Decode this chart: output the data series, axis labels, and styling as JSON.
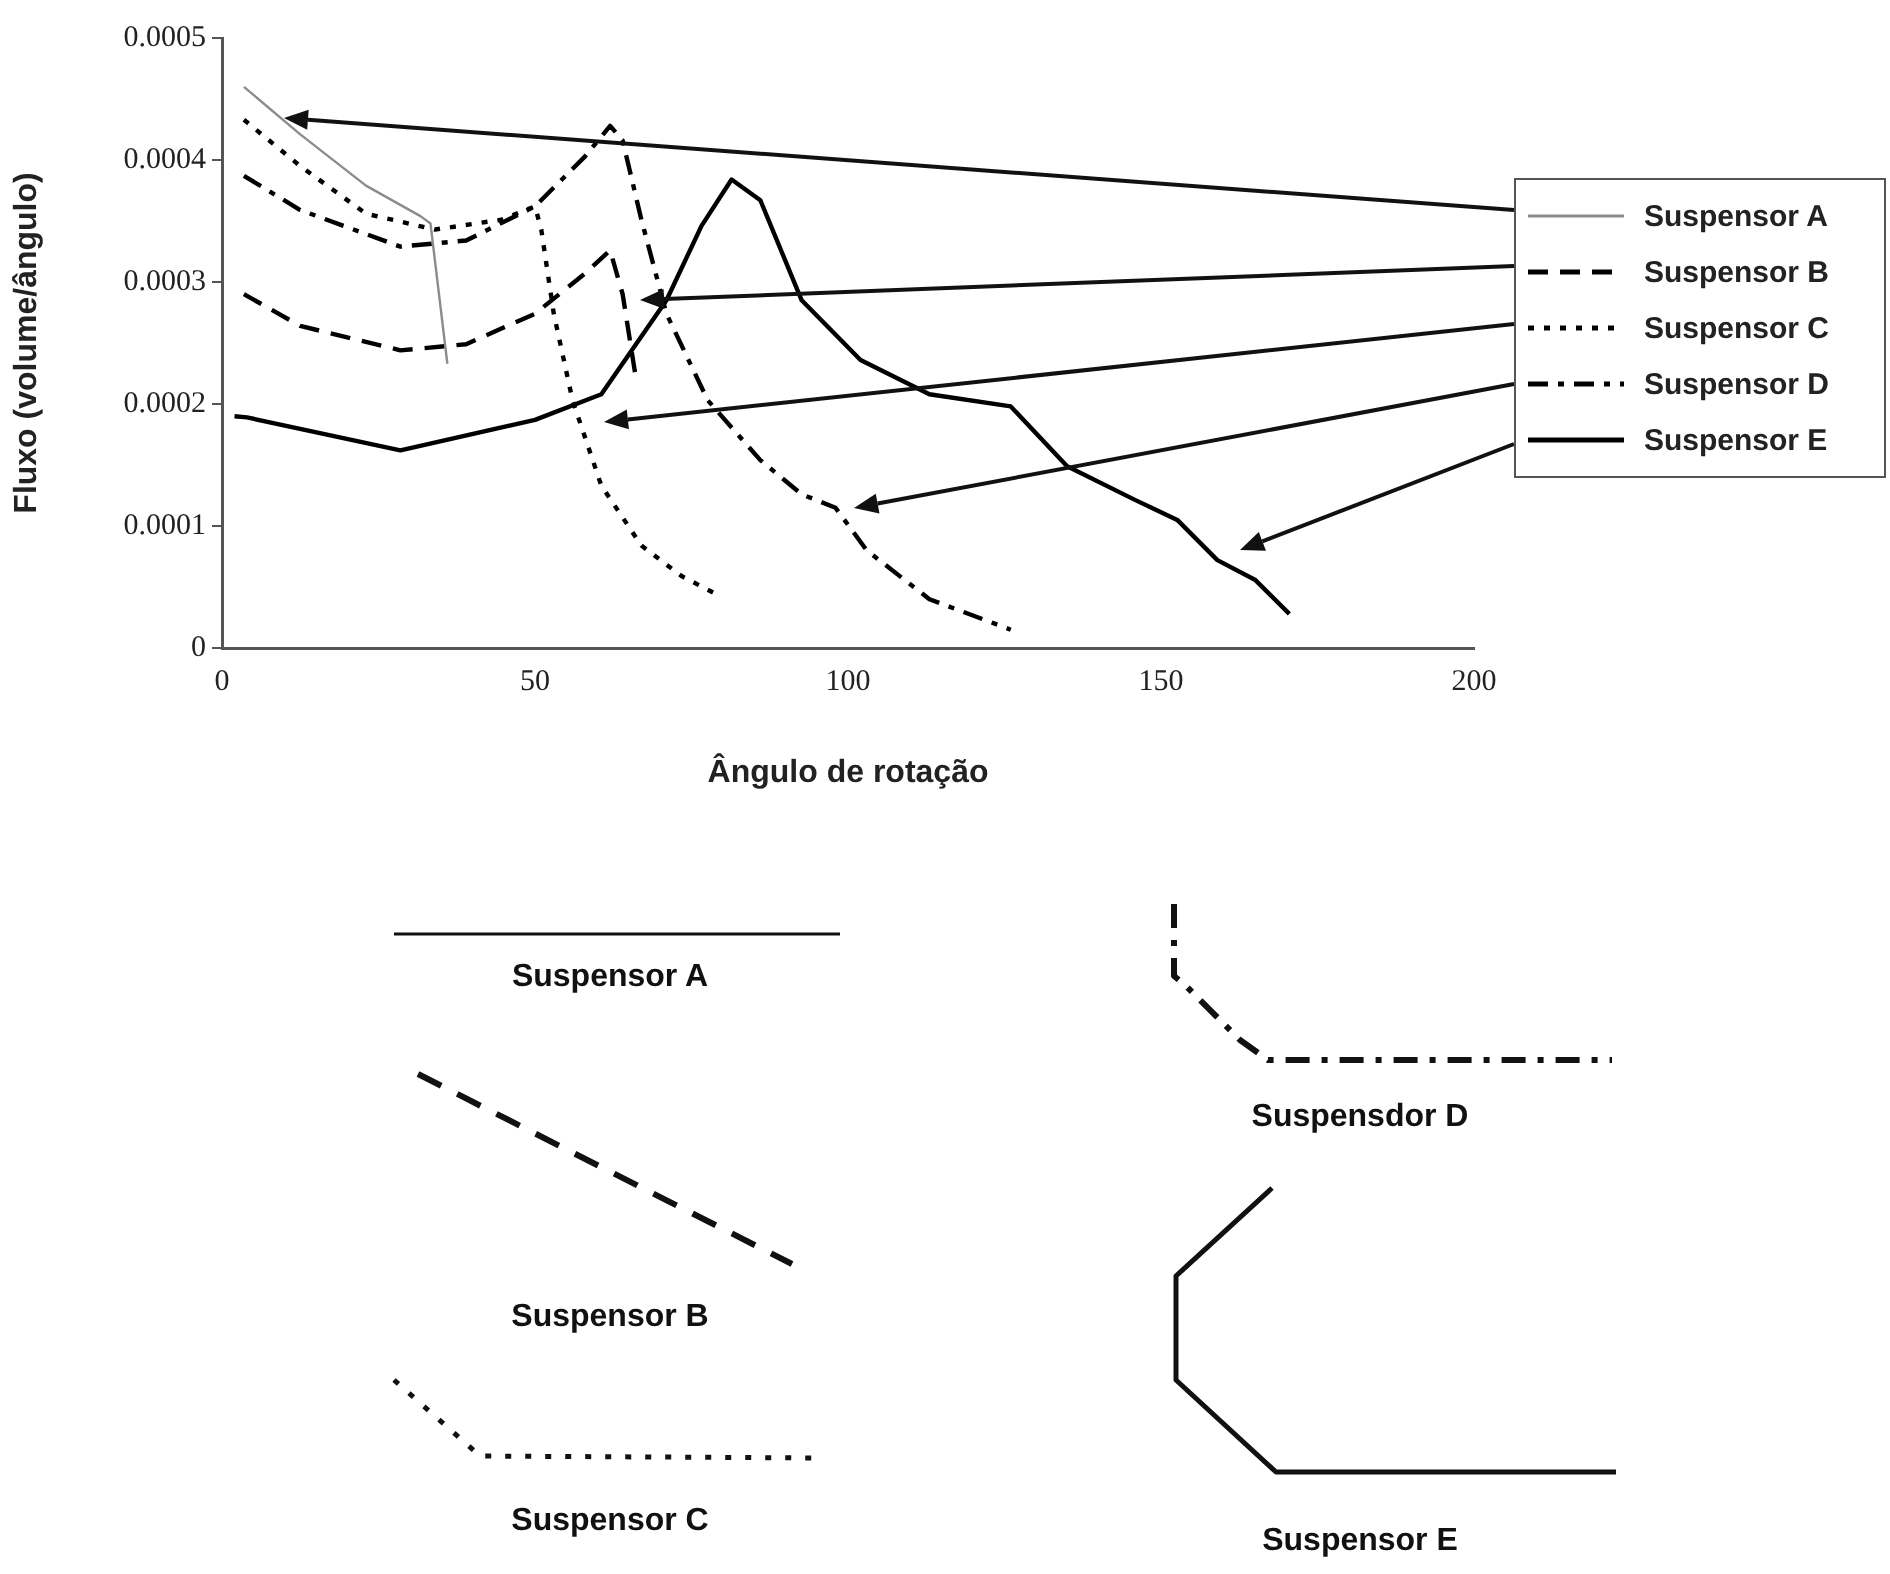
{
  "chart_data": {
    "type": "line",
    "xlabel": "Ângulo de rotação",
    "ylabel": "Fluxo (volume/ângulo)",
    "xlim": [
      0,
      200
    ],
    "xticks": [
      0,
      50,
      100,
      150,
      200
    ],
    "ylim": [
      0,
      0.0005
    ],
    "yticks": [
      0,
      0.0001,
      0.0002,
      0.0003,
      0.0004,
      0.0005
    ],
    "grid": false,
    "legend": "right",
    "marker": "none",
    "series": [
      {
        "name": "Suspensor A",
        "color": "#8c8c8c",
        "line_style": "solid",
        "x": [
          3.5,
          12.5,
          23,
          31.7,
          33.3,
          36
        ],
        "values": [
          0.00046,
          0.000421,
          0.000379,
          0.000354,
          0.000348,
          0.000233
        ]
      },
      {
        "name": "Suspensor B",
        "color": "#000000",
        "line_style": "dashed",
        "x": [
          3.5,
          12.5,
          28.5,
          39,
          50,
          58,
          62,
          64,
          66
        ],
        "values": [
          0.00029,
          0.000264,
          0.000244,
          0.000249,
          0.000274,
          0.000307,
          0.000326,
          0.00029,
          0.000225
        ]
      },
      {
        "name": "Suspensor C",
        "color": "#000000",
        "line_style": "dotted",
        "x": [
          3.5,
          12.5,
          23,
          34,
          44.6,
          50,
          51,
          53,
          56,
          60.6,
          67,
          73.4,
          79
        ],
        "values": [
          0.000433,
          0.000395,
          0.000356,
          0.000343,
          0.000351,
          0.000362,
          0.000343,
          0.000274,
          0.000203,
          0.000133,
          8.4e-05,
          5.9e-05,
          4.4e-05
        ]
      },
      {
        "name": "Suspensor D",
        "color": "#000000",
        "line_style": "dashdot",
        "x": [
          3.5,
          12.5,
          28.5,
          39,
          50,
          58,
          62,
          64,
          67,
          71,
          77.6,
          86,
          92.6,
          98,
          103,
          113,
          126
        ],
        "values": [
          0.000387,
          0.000359,
          0.000329,
          0.000334,
          0.000362,
          0.000403,
          0.000428,
          0.000416,
          0.000351,
          0.000274,
          0.000203,
          0.000154,
          0.000126,
          0.000115,
          8e-05,
          4e-05,
          1.5e-05
        ]
      },
      {
        "name": "Suspensor E",
        "color": "#000000",
        "line_style": "solid",
        "x": [
          2,
          4,
          28.5,
          50,
          60.6,
          71,
          76.6,
          81.4,
          86,
          92.6,
          102,
          113,
          126,
          135,
          146,
          152.6,
          159,
          165,
          170.5
        ],
        "values": [
          0.00019,
          0.000189,
          0.000162,
          0.000187,
          0.000208,
          0.000285,
          0.000346,
          0.000384,
          0.000367,
          0.000285,
          0.000236,
          0.000208,
          0.000198,
          0.000149,
          0.000121,
          0.000105,
          7.2e-05,
          5.6e-05,
          2.8e-05
        ]
      }
    ],
    "annotations": [
      "Suspensor A",
      "Suspensor B",
      "Suspensor C",
      "Suspensdor D",
      "Suspensor E"
    ]
  }
}
